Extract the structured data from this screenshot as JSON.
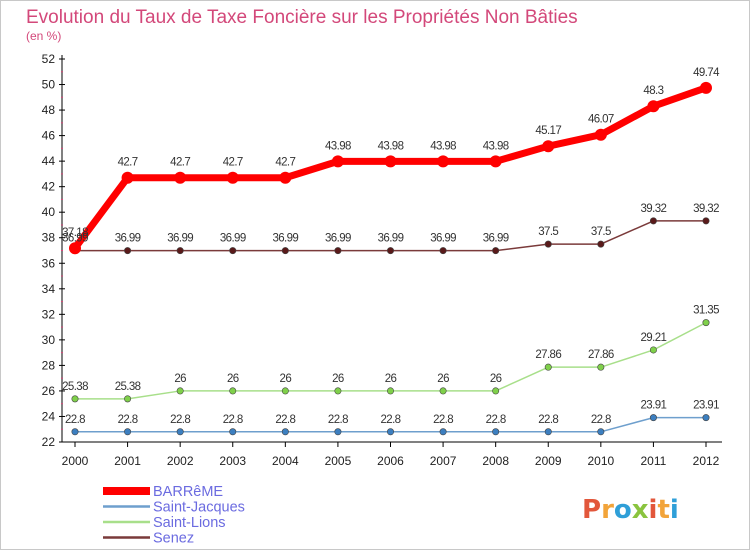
{
  "chart_data": {
    "type": "line",
    "title": "Evolution du Taux de Taxe Foncière sur les Propriétés Non Bâties",
    "subtitle": "(en %)",
    "xlabel": "",
    "ylabel": "",
    "x": [
      "2000",
      "2001",
      "2002",
      "2003",
      "2004",
      "2005",
      "2006",
      "2007",
      "2008",
      "2009",
      "2010",
      "2011",
      "2012"
    ],
    "ylim": [
      22,
      52
    ],
    "yticks": [
      22,
      24,
      26,
      28,
      30,
      32,
      34,
      36,
      38,
      40,
      42,
      44,
      46,
      48,
      50,
      52
    ],
    "grid": false,
    "legend_position": "bottom-left",
    "series": [
      {
        "name": "BARRêME",
        "color": "#ff0000",
        "marker_color": "#ff0000",
        "values": [
          37.18,
          42.7,
          42.7,
          42.7,
          42.7,
          43.98,
          43.98,
          43.98,
          43.98,
          45.17,
          46.07,
          48.3,
          49.74
        ],
        "labels": [
          "37.18",
          "42.7",
          "42.7",
          "42.7",
          "42.7",
          "43.98",
          "43.98",
          "43.98",
          "43.98",
          "45.17",
          "46.07",
          "48.3",
          "49.74"
        ]
      },
      {
        "name": "Saint-Jacques",
        "color": "#6e9fcd",
        "marker_color": "#3c7fc0",
        "values": [
          22.8,
          22.8,
          22.8,
          22.8,
          22.8,
          22.8,
          22.8,
          22.8,
          22.8,
          22.8,
          22.8,
          23.91,
          23.91
        ],
        "labels": [
          "22.8",
          "22.8",
          "22.8",
          "22.8",
          "22.8",
          "22.8",
          "22.8",
          "22.8",
          "22.8",
          "22.8",
          "22.8",
          "23.91",
          "23.91"
        ]
      },
      {
        "name": "Saint-Lions",
        "color": "#a8df8a",
        "marker_color": "#7fd04a",
        "values": [
          25.38,
          25.38,
          26,
          26,
          26,
          26,
          26,
          26,
          26,
          27.86,
          27.86,
          29.21,
          31.35
        ],
        "labels": [
          "25.38",
          "25.38",
          "26",
          "26",
          "26",
          "26",
          "26",
          "26",
          "26",
          "27.86",
          "27.86",
          "29.21",
          "31.35"
        ]
      },
      {
        "name": "Senez",
        "color": "#7a3a3a",
        "marker_color": "#5a1a1a",
        "values": [
          36.99,
          36.99,
          36.99,
          36.99,
          36.99,
          36.99,
          36.99,
          36.99,
          36.99,
          37.5,
          37.5,
          39.32,
          39.32
        ],
        "labels": [
          "36.99",
          "36.99",
          "36.99",
          "36.99",
          "36.99",
          "36.99",
          "36.99",
          "36.99",
          "36.99",
          "37.5",
          "37.5",
          "39.32",
          "39.32"
        ]
      }
    ]
  },
  "logo": {
    "text": "Proxiti",
    "colors": [
      "#e2573b",
      "#f2a43a",
      "#2f9fd8",
      "#8ac43f",
      "#e2573b",
      "#f2a43a",
      "#2f9fd8"
    ]
  }
}
